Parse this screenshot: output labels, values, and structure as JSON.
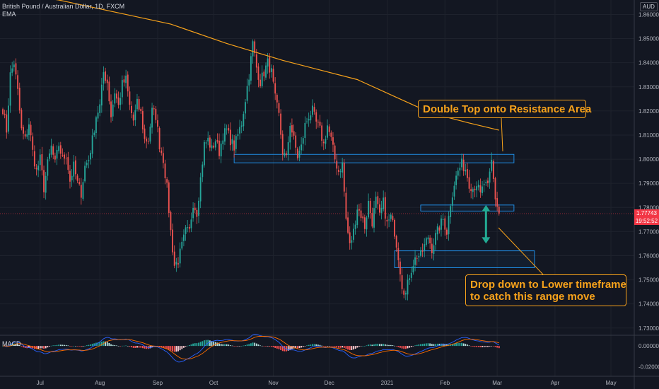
{
  "header": {
    "symbol_line": "British Pound / Australian Dollar, 1D, FXCM",
    "indicator": "EMA"
  },
  "currency_label": "AUD",
  "macd_label": "MACD",
  "price": {
    "last": "1.77743",
    "countdown": "19:52:52",
    "last_value": 1.77743
  },
  "callouts": {
    "top": "Double Top onto Resistance Area",
    "bottom_line1": "Drop down to Lower timeframe",
    "bottom_line2": "to catch this range move"
  },
  "colors": {
    "background": "#131722",
    "up": "#26a69a",
    "down": "#ef5350",
    "ema": "#f7a21b",
    "zone": "#2196f3",
    "arrow": "#22ab94",
    "macd_line": "#2962ff",
    "signal_line": "#ff6d00"
  },
  "chart_data": {
    "type": "candlestick",
    "symbol": "GBPAUD",
    "timeframe": "1D",
    "y_axis": {
      "range": [
        1.727,
        1.866
      ],
      "ticks": [
        "1.86000",
        "1.85000",
        "1.84000",
        "1.83000",
        "1.82000",
        "1.81000",
        "1.80000",
        "1.79000",
        "1.78000",
        "1.77000",
        "1.76000",
        "1.75000",
        "1.74000",
        "1.73000"
      ]
    },
    "x_axis": {
      "labels": [
        "Jul",
        "Aug",
        "Sep",
        "Oct",
        "Nov",
        "Dec",
        "2021",
        "Feb",
        "Mar",
        "Apr",
        "May"
      ],
      "label_day_index": [
        20,
        52,
        83,
        113,
        145,
        175,
        206,
        237,
        265,
        296,
        326
      ],
      "total_days": 340
    },
    "anchors": [
      [
        0,
        1.821
      ],
      [
        2,
        1.812
      ],
      [
        4,
        1.835
      ],
      [
        6,
        1.84
      ],
      [
        8,
        1.828
      ],
      [
        10,
        1.812
      ],
      [
        12,
        1.808
      ],
      [
        14,
        1.815
      ],
      [
        16,
        1.803
      ],
      [
        18,
        1.795
      ],
      [
        20,
        1.8
      ],
      [
        22,
        1.788
      ],
      [
        24,
        1.798
      ],
      [
        26,
        1.805
      ],
      [
        28,
        1.798
      ],
      [
        30,
        1.806
      ],
      [
        32,
        1.8
      ],
      [
        34,
        1.802
      ],
      [
        36,
        1.791
      ],
      [
        38,
        1.797
      ],
      [
        40,
        1.79
      ],
      [
        42,
        1.786
      ],
      [
        44,
        1.797
      ],
      [
        46,
        1.8
      ],
      [
        48,
        1.808
      ],
      [
        50,
        1.818
      ],
      [
        52,
        1.822
      ],
      [
        54,
        1.836
      ],
      [
        56,
        1.832
      ],
      [
        58,
        1.818
      ],
      [
        60,
        1.828
      ],
      [
        62,
        1.822
      ],
      [
        64,
        1.831
      ],
      [
        66,
        1.833
      ],
      [
        68,
        1.822
      ],
      [
        70,
        1.816
      ],
      [
        72,
        1.823
      ],
      [
        74,
        1.819
      ],
      [
        76,
        1.808
      ],
      [
        78,
        1.808
      ],
      [
        80,
        1.82
      ],
      [
        82,
        1.818
      ],
      [
        84,
        1.806
      ],
      [
        86,
        1.8
      ],
      [
        88,
        1.788
      ],
      [
        90,
        1.77
      ],
      [
        92,
        1.756
      ],
      [
        94,
        1.758
      ],
      [
        96,
        1.764
      ],
      [
        98,
        1.77
      ],
      [
        100,
        1.77
      ],
      [
        102,
        1.782
      ],
      [
        104,
        1.778
      ],
      [
        106,
        1.792
      ],
      [
        108,
        1.806
      ],
      [
        110,
        1.808
      ],
      [
        112,
        1.804
      ],
      [
        114,
        1.808
      ],
      [
        116,
        1.803
      ],
      [
        118,
        1.81
      ],
      [
        120,
        1.812
      ],
      [
        122,
        1.808
      ],
      [
        124,
        1.805
      ],
      [
        126,
        1.81
      ],
      [
        128,
        1.815
      ],
      [
        130,
        1.825
      ],
      [
        132,
        1.835
      ],
      [
        134,
        1.848
      ],
      [
        136,
        1.838
      ],
      [
        138,
        1.832
      ],
      [
        140,
        1.836
      ],
      [
        142,
        1.84
      ],
      [
        144,
        1.836
      ],
      [
        146,
        1.825
      ],
      [
        148,
        1.818
      ],
      [
        150,
        1.803
      ],
      [
        152,
        1.8
      ],
      [
        154,
        1.815
      ],
      [
        156,
        1.808
      ],
      [
        158,
        1.801
      ],
      [
        160,
        1.805
      ],
      [
        162,
        1.814
      ],
      [
        164,
        1.818
      ],
      [
        166,
        1.82
      ],
      [
        168,
        1.815
      ],
      [
        170,
        1.812
      ],
      [
        172,
        1.806
      ],
      [
        174,
        1.814
      ],
      [
        176,
        1.808
      ],
      [
        178,
        1.8
      ],
      [
        180,
        1.795
      ],
      [
        182,
        1.798
      ],
      [
        184,
        1.775
      ],
      [
        186,
        1.764
      ],
      [
        188,
        1.77
      ],
      [
        190,
        1.78
      ],
      [
        192,
        1.777
      ],
      [
        194,
        1.772
      ],
      [
        196,
        1.782
      ],
      [
        198,
        1.774
      ],
      [
        200,
        1.783
      ],
      [
        202,
        1.776
      ],
      [
        204,
        1.782
      ],
      [
        206,
        1.773
      ],
      [
        208,
        1.776
      ],
      [
        210,
        1.77
      ],
      [
        212,
        1.76
      ],
      [
        214,
        1.748
      ],
      [
        216,
        1.744
      ],
      [
        218,
        1.752
      ],
      [
        220,
        1.757
      ],
      [
        222,
        1.76
      ],
      [
        224,
        1.76
      ],
      [
        226,
        1.764
      ],
      [
        228,
        1.768
      ],
      [
        230,
        1.763
      ],
      [
        232,
        1.768
      ],
      [
        234,
        1.772
      ],
      [
        236,
        1.775
      ],
      [
        238,
        1.77
      ],
      [
        240,
        1.782
      ],
      [
        242,
        1.79
      ],
      [
        244,
        1.795
      ],
      [
        246,
        1.798
      ],
      [
        248,
        1.796
      ],
      [
        250,
        1.79
      ],
      [
        252,
        1.788
      ],
      [
        254,
        1.79
      ],
      [
        256,
        1.785
      ],
      [
        258,
        1.79
      ],
      [
        260,
        1.788
      ],
      [
        262,
        1.799
      ],
      [
        264,
        1.784
      ],
      [
        266,
        1.7774
      ]
    ],
    "ema": [
      [
        0,
        1.869
      ],
      [
        30,
        1.866
      ],
      [
        60,
        1.861
      ],
      [
        90,
        1.856
      ],
      [
        120,
        1.848
      ],
      [
        150,
        1.841
      ],
      [
        170,
        1.837
      ],
      [
        190,
        1.833
      ],
      [
        210,
        1.826
      ],
      [
        230,
        1.819
      ],
      [
        250,
        1.815
      ],
      [
        266,
        1.812
      ]
    ],
    "zones": [
      {
        "name": "resistance",
        "x_range": [
          124,
          274
        ],
        "y_range": [
          1.7985,
          1.802
        ]
      },
      {
        "name": "range-top",
        "x_range": [
          224,
          274
        ],
        "y_range": [
          1.7785,
          1.781
        ]
      },
      {
        "name": "range-bottom",
        "x_range": [
          210,
          285
        ],
        "y_range": [
          1.755,
          1.762
        ]
      }
    ],
    "arrow": {
      "x": 259,
      "from": 1.781,
      "to": 1.765
    },
    "macd": {
      "ylim": [
        -0.028,
        0.009
      ],
      "ticks": [
        "0.00000",
        "-0.02000"
      ]
    }
  }
}
